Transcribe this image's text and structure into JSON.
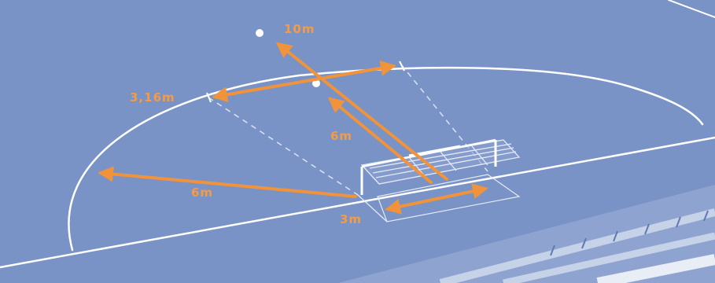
{
  "labels": {
    "penalty_mark_10": "10m",
    "line_width": "3,16m",
    "penalty_mark_6": "6m",
    "arc_radius": "6m",
    "goal_width": "3m"
  },
  "colors": {
    "court": "#7a93c6",
    "line": "#ffffff",
    "arrow": "#f0933a",
    "label": "#f59a45",
    "stand": "#c6d2e8"
  }
}
